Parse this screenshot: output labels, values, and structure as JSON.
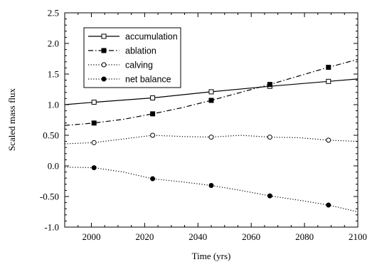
{
  "chart_data": {
    "type": "line",
    "xlabel": "Time (yrs)",
    "ylabel": "Scaled mass flux",
    "xlim": [
      1990,
      2100
    ],
    "ylim": [
      -1.0,
      2.5
    ],
    "x_ticks": [
      2000,
      2020,
      2040,
      2060,
      2080,
      2100
    ],
    "y_ticks": [
      {
        "value": 2.5,
        "label": "2.5"
      },
      {
        "value": 2.0,
        "label": "2.0"
      },
      {
        "value": 1.5,
        "label": "1.5"
      },
      {
        "value": 1.0,
        "label": "1.0"
      },
      {
        "value": 0.5,
        "label": "0.50"
      },
      {
        "value": 0.0,
        "label": "0.0"
      },
      {
        "value": -0.5,
        "label": "-0.50"
      },
      {
        "value": -1.0,
        "label": "-1.0"
      }
    ],
    "grid": false,
    "legend_position": "top-left",
    "series": [
      {
        "name": "accumulation",
        "line_style": "solid",
        "marker": "open-square",
        "x": [
          1990,
          2001,
          2023,
          2045,
          2067,
          2089,
          2100
        ],
        "y": [
          1.0,
          1.04,
          1.11,
          1.21,
          1.3,
          1.38,
          1.42
        ],
        "marker_x": [
          2001,
          2023,
          2045,
          2067,
          2089
        ],
        "marker_y": [
          1.04,
          1.11,
          1.21,
          1.3,
          1.38
        ]
      },
      {
        "name": "ablation",
        "line_style": "dash-dot",
        "marker": "filled-square",
        "x": [
          1990,
          2001,
          2012,
          2023,
          2034,
          2045,
          2056,
          2067,
          2078,
          2089,
          2100
        ],
        "y": [
          0.66,
          0.7,
          0.76,
          0.85,
          0.95,
          1.07,
          1.2,
          1.33,
          1.47,
          1.61,
          1.74
        ],
        "marker_x": [
          2001,
          2023,
          2045,
          2067,
          2089
        ],
        "marker_y": [
          0.7,
          0.85,
          1.07,
          1.33,
          1.61
        ]
      },
      {
        "name": "calving",
        "line_style": "dotted",
        "marker": "open-circle",
        "x": [
          1990,
          2001,
          2012,
          2023,
          2034,
          2045,
          2056,
          2067,
          2078,
          2089,
          2100
        ],
        "y": [
          0.36,
          0.38,
          0.44,
          0.5,
          0.48,
          0.47,
          0.5,
          0.47,
          0.46,
          0.42,
          0.4
        ],
        "marker_x": [
          2001,
          2023,
          2045,
          2067,
          2089
        ],
        "marker_y": [
          0.38,
          0.5,
          0.47,
          0.47,
          0.42
        ]
      },
      {
        "name": "net balance",
        "line_style": "dotted",
        "marker": "filled-circle",
        "x": [
          1990,
          2001,
          2012,
          2023,
          2034,
          2045,
          2056,
          2067,
          2078,
          2089,
          2100
        ],
        "y": [
          -0.02,
          -0.03,
          -0.1,
          -0.21,
          -0.26,
          -0.32,
          -0.4,
          -0.49,
          -0.56,
          -0.64,
          -0.75
        ],
        "marker_x": [
          2001,
          2023,
          2045,
          2067,
          2089
        ],
        "marker_y": [
          -0.03,
          -0.21,
          -0.32,
          -0.49,
          -0.64
        ]
      }
    ]
  }
}
